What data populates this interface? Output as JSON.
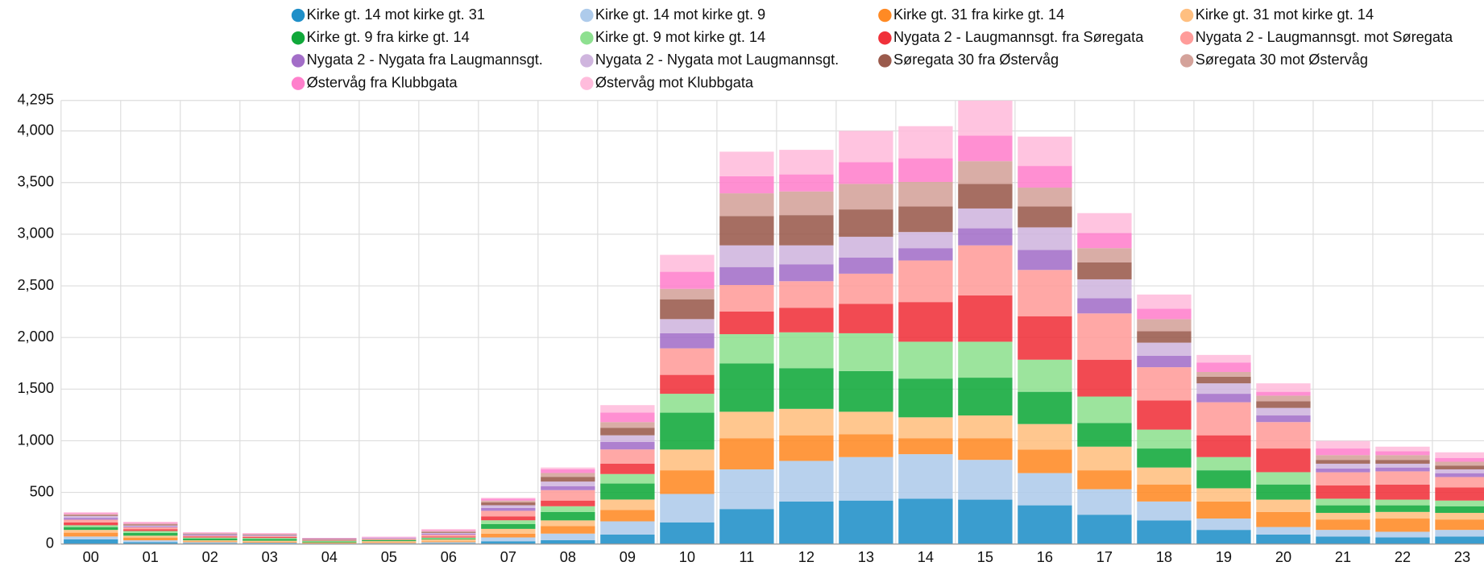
{
  "chart_data": {
    "type": "stacked_bar",
    "categories": [
      "00",
      "01",
      "02",
      "03",
      "04",
      "05",
      "06",
      "07",
      "08",
      "09",
      "10",
      "11",
      "12",
      "13",
      "14",
      "15",
      "16",
      "17",
      "18",
      "19",
      "20",
      "21",
      "22",
      "23"
    ],
    "ylim": [
      0,
      4295
    ],
    "yticks": [
      0,
      500,
      {
        "value": 1000,
        "label": "1,000"
      },
      {
        "value": 1500,
        "label": "1,500"
      },
      {
        "value": 2000,
        "label": "2,000"
      },
      {
        "value": 2500,
        "label": "2,500"
      },
      {
        "value": 3000,
        "label": "3,000"
      },
      {
        "value": 3500,
        "label": "3,500"
      },
      {
        "value": 4000,
        "label": "4,000"
      },
      {
        "value": 4295,
        "label": "4,295"
      }
    ],
    "grid": true,
    "series": [
      {
        "name": "Kirke gt. 14 mot kirke gt. 31",
        "color": "#1f8fc8",
        "values": [
          46,
          18,
          9,
          9,
          5,
          5,
          9,
          27,
          37,
          92,
          210,
          339,
          412,
          421,
          439,
          430,
          375,
          284,
          229,
          137,
          92,
          73,
          64,
          73
        ]
      },
      {
        "name": "Kirke gt. 14 mot kirke gt. 9",
        "color": "#aecbeb",
        "values": [
          27,
          18,
          9,
          5,
          0,
          5,
          9,
          37,
          64,
          128,
          275,
          384,
          393,
          421,
          431,
          385,
          312,
          247,
          183,
          110,
          73,
          64,
          55,
          64
        ]
      },
      {
        "name": "Kirke gt. 31 fra kirke gt. 14",
        "color": "#ff8a24",
        "values": [
          37,
          27,
          9,
          9,
          5,
          9,
          9,
          37,
          73,
          110,
          229,
          302,
          248,
          220,
          155,
          210,
          228,
          183,
          165,
          165,
          146,
          101,
          128,
          101
        ]
      },
      {
        "name": "Kirke gt. 31 mot kirke gt. 14",
        "color": "#ffbf80",
        "values": [
          27,
          18,
          9,
          9,
          5,
          9,
          18,
          46,
          55,
          101,
          201,
          256,
          256,
          219,
          202,
          220,
          247,
          229,
          164,
          128,
          119,
          64,
          64,
          64
        ]
      },
      {
        "name": "Kirke gt. 9 fra kirke gt. 14",
        "color": "#10a83a",
        "values": [
          27,
          27,
          18,
          18,
          9,
          9,
          9,
          46,
          82,
          155,
          357,
          467,
          394,
          394,
          375,
          366,
          312,
          229,
          184,
          174,
          147,
          73,
          64,
          64
        ]
      },
      {
        "name": "Kirke gt. 9 mot kirke gt. 14",
        "color": "#8ee090",
        "values": [
          18,
          18,
          9,
          9,
          9,
          5,
          9,
          37,
          55,
          92,
          183,
          284,
          347,
          366,
          357,
          348,
          311,
          256,
          183,
          128,
          119,
          64,
          55,
          55
        ]
      },
      {
        "name": "Nygata 2 - Laugmannsgt. fra Søregata",
        "color": "#f0313a",
        "values": [
          27,
          18,
          9,
          9,
          5,
          5,
          9,
          37,
          55,
          101,
          183,
          220,
          238,
          284,
          384,
          448,
          421,
          357,
          283,
          211,
          229,
          128,
          146,
          128
        ]
      },
      {
        "name": "Nygata 2 - Laugmannsgt. mot Søregata",
        "color": "#ff9c9a",
        "values": [
          27,
          18,
          9,
          9,
          5,
          5,
          18,
          55,
          101,
          137,
          257,
          256,
          257,
          293,
          403,
          485,
          448,
          448,
          321,
          320,
          256,
          128,
          128,
          100
        ]
      },
      {
        "name": "Nygata 2 - Nygata fra Laugmannsgt.",
        "color": "#a36ec8",
        "values": [
          18,
          9,
          9,
          5,
          5,
          5,
          9,
          27,
          37,
          73,
          146,
          174,
          164,
          155,
          119,
          165,
          193,
          147,
          110,
          82,
          64,
          37,
          37,
          37
        ]
      },
      {
        "name": "Nygata 2 - Nygata mot Laugmannsgt.",
        "color": "#cfb5de",
        "values": [
          18,
          9,
          5,
          5,
          0,
          5,
          9,
          27,
          46,
          64,
          137,
          210,
          183,
          202,
          156,
          192,
          219,
          183,
          128,
          101,
          73,
          46,
          37,
          37
        ]
      },
      {
        "name": "Søregata 30 fra Østervåg",
        "color": "#9a5a4c",
        "values": [
          9,
          9,
          5,
          5,
          5,
          0,
          9,
          27,
          46,
          73,
          192,
          284,
          293,
          265,
          247,
          238,
          202,
          165,
          110,
          64,
          64,
          37,
          37,
          37
        ]
      },
      {
        "name": "Søregata 30 mot Østervåg",
        "color": "#d4a29a",
        "values": [
          9,
          9,
          5,
          5,
          0,
          0,
          9,
          18,
          37,
          55,
          101,
          220,
          229,
          247,
          238,
          220,
          183,
          137,
          118,
          46,
          55,
          46,
          46,
          37
        ]
      },
      {
        "name": "Østervåg fra Klubbgata",
        "color": "#ff80cc",
        "values": [
          9,
          9,
          5,
          5,
          5,
          5,
          9,
          18,
          37,
          92,
          165,
          165,
          165,
          211,
          229,
          247,
          210,
          146,
          101,
          92,
          37,
          64,
          37,
          37
        ]
      },
      {
        "name": "Østervåg mot Klubbgata",
        "color": "#ffbcdc",
        "values": [
          9,
          9,
          5,
          5,
          0,
          5,
          10,
          9,
          16,
          72,
          164,
          238,
          238,
          302,
          311,
          339,
          284,
          193,
          137,
          73,
          82,
          73,
          45,
          54
        ]
      }
    ]
  }
}
